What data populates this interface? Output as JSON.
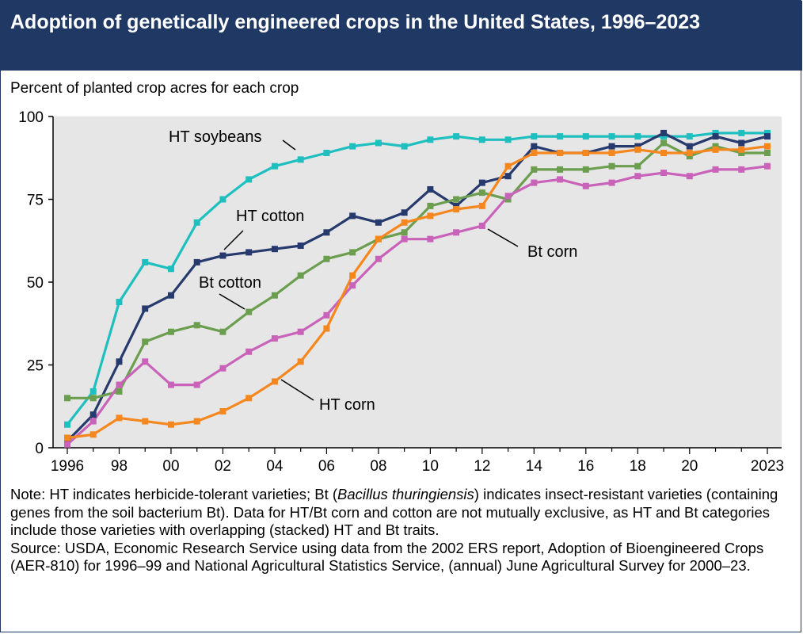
{
  "header": {
    "title": "Adoption of genetically engineered crops in the United States, 1996–2023"
  },
  "chart_meta": {
    "ylabel": "Percent of planted crop acres for each crop",
    "y_ticks": [
      "0",
      "25",
      "50",
      "75",
      "100"
    ],
    "x_ticks": [
      {
        "year": 1996,
        "label": "1996"
      },
      {
        "year": 1998,
        "label": "98"
      },
      {
        "year": 2000,
        "label": "00"
      },
      {
        "year": 2002,
        "label": "02"
      },
      {
        "year": 2004,
        "label": "04"
      },
      {
        "year": 2006,
        "label": "06"
      },
      {
        "year": 2008,
        "label": "08"
      },
      {
        "year": 2010,
        "label": "10"
      },
      {
        "year": 2012,
        "label": "12"
      },
      {
        "year": 2014,
        "label": "14"
      },
      {
        "year": 2016,
        "label": "16"
      },
      {
        "year": 2018,
        "label": "18"
      },
      {
        "year": 2020,
        "label": "20"
      },
      {
        "year": 2023,
        "label": "2023"
      }
    ]
  },
  "chart_data": {
    "type": "line",
    "ylim": [
      0,
      100
    ],
    "xlim": [
      1996,
      2023
    ],
    "grid": false,
    "x": [
      1996,
      1997,
      1998,
      1999,
      2000,
      2001,
      2002,
      2003,
      2004,
      2005,
      2006,
      2007,
      2008,
      2009,
      2010,
      2011,
      2012,
      2013,
      2014,
      2015,
      2016,
      2017,
      2018,
      2019,
      2020,
      2021,
      2022,
      2023
    ],
    "series": [
      {
        "name": "HT soybeans",
        "color": "#1fbfbf",
        "values": [
          7,
          17,
          44,
          56,
          54,
          68,
          75,
          81,
          85,
          87,
          89,
          91,
          92,
          91,
          93,
          94,
          93,
          93,
          94,
          94,
          94,
          94,
          94,
          94,
          94,
          95,
          95,
          95
        ]
      },
      {
        "name": "HT cotton",
        "color": "#273a6e",
        "values": [
          2,
          10,
          26,
          42,
          46,
          56,
          58,
          59,
          60,
          61,
          65,
          70,
          68,
          71,
          78,
          73,
          80,
          82,
          91,
          89,
          89,
          91,
          91,
          95,
          91,
          94,
          92,
          94
        ]
      },
      {
        "name": "Bt cotton",
        "color": "#6b9e4e",
        "values": [
          15,
          15,
          17,
          32,
          35,
          37,
          35,
          41,
          46,
          52,
          57,
          59,
          63,
          65,
          73,
          75,
          77,
          75,
          84,
          84,
          84,
          85,
          85,
          92,
          88,
          91,
          89,
          89
        ]
      },
      {
        "name": "Bt corn",
        "color": "#c963b9",
        "values": [
          1,
          8,
          19,
          26,
          19,
          19,
          24,
          29,
          33,
          35,
          40,
          49,
          57,
          63,
          63,
          65,
          67,
          76,
          80,
          81,
          79,
          80,
          82,
          83,
          82,
          84,
          84,
          85
        ]
      },
      {
        "name": "HT corn",
        "color": "#f5871f",
        "values": [
          3,
          4,
          9,
          8,
          7,
          8,
          11,
          15,
          20,
          26,
          36,
          52,
          63,
          68,
          70,
          72,
          73,
          85,
          89,
          89,
          89,
          89,
          90,
          89,
          89,
          90,
          90,
          91
        ]
      }
    ],
    "annotations": [
      {
        "text": "HT soybeans"
      },
      {
        "text": "HT cotton"
      },
      {
        "text": "Bt cotton"
      },
      {
        "text": "Bt corn"
      },
      {
        "text": "HT corn"
      }
    ]
  },
  "notes": {
    "note_prefix": "Note: HT indicates herbicide-tolerant varieties; Bt (",
    "note_italic": "Bacillus thuringiensis",
    "note_suffix": ") indicates insect-resistant varieties (containing genes from the soil bacterium Bt). Data for HT/Bt corn and cotton are not mutually exclusive, as HT and Bt categories include those varieties with overlapping (stacked) HT and Bt traits.",
    "source": "Source: USDA, Economic Research Service using data from the 2002 ERS report, Adoption of Bioengineered Crops (AER-810) for 1996–99 and National Agricultural Statistics Service, (annual) June Agricultural Survey for 2000–23."
  }
}
